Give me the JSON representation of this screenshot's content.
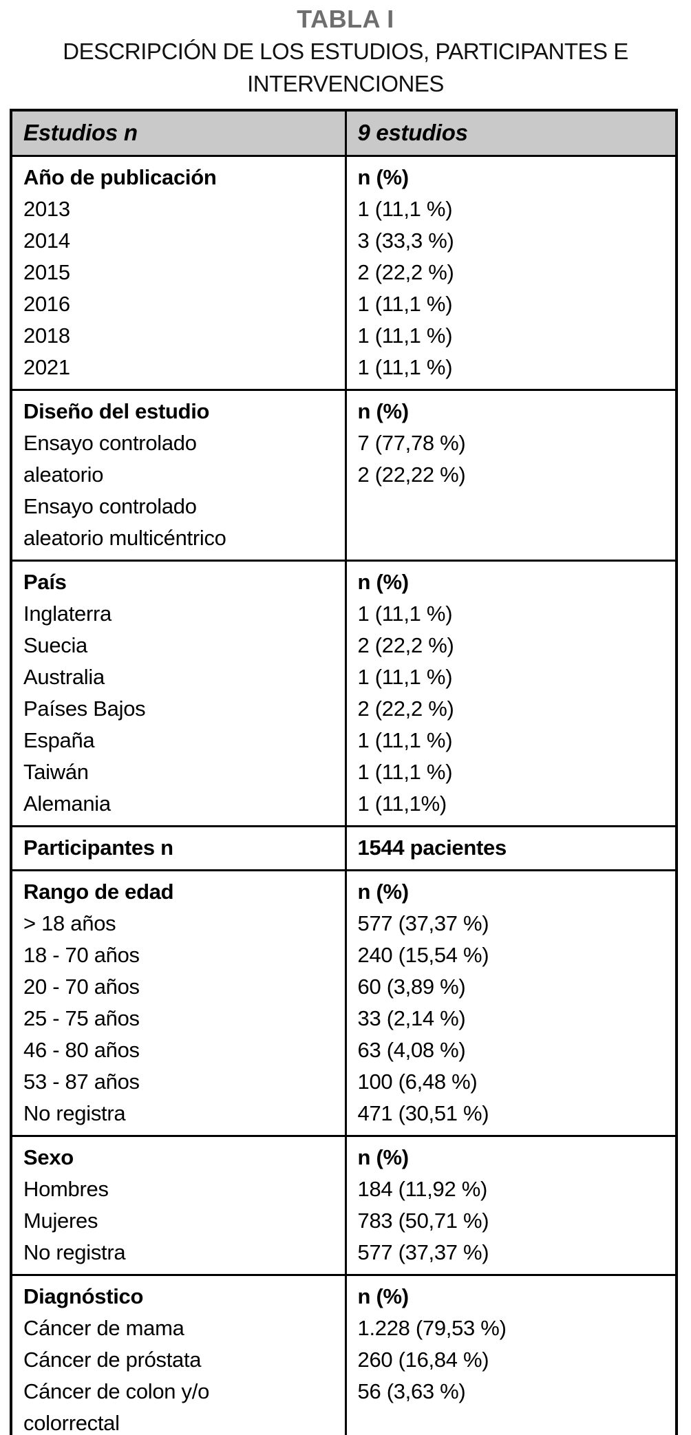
{
  "colors": {
    "header-bg": "#c9c9c9",
    "title-color": "#6e6e6e",
    "border-color": "#000000",
    "text-color": "#000000"
  },
  "caption": {
    "label": "TABLA I",
    "title": "DESCRIPCIÓN DE LOS ESTUDIOS, PARTICIPANTES E INTERVENCIONES"
  },
  "table": {
    "header": {
      "left": "Estudios n",
      "right": "9 estudios"
    },
    "sections": [
      {
        "name": "publication-year",
        "left_lines": [
          "Año de publicación",
          "2013",
          "2014",
          "2015",
          "2016",
          "2018",
          "2021"
        ],
        "right_lines": [
          "n (%)",
          "1 (11,1 %)",
          "3 (33,3 %)",
          "2 (22,2 %)",
          "1 (11,1 %)",
          "1 (11,1 %)",
          "1 (11,1 %)"
        ]
      },
      {
        "name": "study-design",
        "left_lines": [
          "Diseño del estudio",
          "Ensayo controlado",
          "aleatorio",
          "Ensayo controlado",
          "aleatorio multicéntrico"
        ],
        "right_lines": [
          "n (%)",
          "7 (77,78 %)",
          "2 (22,22 %)"
        ]
      },
      {
        "name": "country",
        "left_lines": [
          "País",
          "Inglaterra",
          "Suecia",
          "Australia",
          "Países Bajos",
          "España",
          "Taiwán",
          "Alemania"
        ],
        "right_lines": [
          "n (%)",
          "1 (11,1 %)",
          "2 (22,2 %)",
          "1 (11,1 %)",
          "2 (22,2 %)",
          "1 (11,1 %)",
          "1 (11,1 %)",
          "1 (11,1%)"
        ]
      },
      {
        "name": "participants",
        "left_lines": [
          "Participantes n"
        ],
        "right_lines": [
          "1544 pacientes"
        ]
      },
      {
        "name": "age-range",
        "left_lines": [
          "Rango de edad",
          "> 18 años",
          "18 - 70 años",
          "20 - 70 años",
          "25 - 75 años",
          "46 - 80 años",
          "53 - 87 años",
          "No registra"
        ],
        "right_lines": [
          "n (%)",
          "577 (37,37 %)",
          "240 (15,54 %)",
          "60 (3,89 %)",
          "33 (2,14 %)",
          "63 (4,08 %)",
          "100 (6,48 %)",
          "471 (30,51 %)"
        ]
      },
      {
        "name": "sex",
        "left_lines": [
          "Sexo",
          "Hombres",
          "Mujeres",
          "No registra"
        ],
        "right_lines": [
          "n (%)",
          "184 (11,92 %)",
          "783 (50,71 %)",
          "577 (37,37 %)"
        ]
      },
      {
        "name": "diagnosis",
        "left_lines": [
          "Diagnóstico",
          "Cáncer de mama",
          "Cáncer de próstata",
          "Cáncer de colon y/o",
          "colorrectal"
        ],
        "right_lines": [
          "n (%)",
          "1.228 (79,53 %)",
          "260 (16,84 %)",
          "56 (3,63 %)"
        ]
      }
    ]
  }
}
